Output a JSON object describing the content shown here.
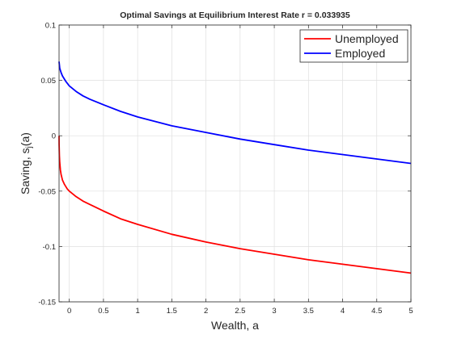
{
  "chart_data": {
    "type": "line",
    "title": "Optimal Savings at Equilibrium Interest Rate r = 0.033935",
    "xlabel": "Wealth, a",
    "ylabel_main": "Saving, s",
    "ylabel_sub": "j",
    "ylabel_tail": "(a)",
    "xlim": [
      -0.15,
      5
    ],
    "ylim": [
      -0.15,
      0.1
    ],
    "xticks": [
      0,
      0.5,
      1,
      1.5,
      2,
      2.5,
      3,
      3.5,
      4,
      4.5,
      5
    ],
    "xtick_labels": [
      "0",
      "0.5",
      "1",
      "1.5",
      "2",
      "2.5",
      "3",
      "3.5",
      "4",
      "4.5",
      "5"
    ],
    "yticks": [
      -0.15,
      -0.1,
      -0.05,
      0,
      0.05,
      0.1
    ],
    "ytick_labels": [
      "-0.15",
      "-0.1",
      "-0.05",
      "0",
      "0.05",
      "0.1"
    ],
    "grid": true,
    "legend_position": "top-right",
    "series": [
      {
        "name": "Unemployed",
        "color": "#ff0000",
        "x": [
          -0.15,
          -0.149,
          -0.145,
          -0.14,
          -0.13,
          -0.12,
          -0.1,
          -0.07,
          -0.03,
          0,
          0.1,
          0.2,
          0.3,
          0.5,
          0.75,
          1,
          1.5,
          2,
          2.5,
          3,
          3.5,
          4,
          4.5,
          5
        ],
        "y": [
          0,
          -0.008,
          -0.018,
          -0.024,
          -0.031,
          -0.035,
          -0.04,
          -0.044,
          -0.048,
          -0.05,
          -0.055,
          -0.059,
          -0.062,
          -0.068,
          -0.075,
          -0.08,
          -0.089,
          -0.096,
          -0.102,
          -0.107,
          -0.112,
          -0.116,
          -0.12,
          -0.124
        ]
      },
      {
        "name": "Employed",
        "color": "#0000ff",
        "x": [
          -0.15,
          -0.14,
          -0.12,
          -0.1,
          -0.05,
          0,
          0.1,
          0.2,
          0.3,
          0.5,
          0.75,
          1,
          1.5,
          2,
          2.5,
          3,
          3.5,
          4,
          4.5,
          5
        ],
        "y": [
          0.067,
          0.061,
          0.057,
          0.054,
          0.049,
          0.045,
          0.04,
          0.036,
          0.033,
          0.028,
          0.022,
          0.017,
          0.009,
          0.003,
          -0.003,
          -0.008,
          -0.013,
          -0.017,
          -0.021,
          -0.025
        ]
      }
    ]
  }
}
